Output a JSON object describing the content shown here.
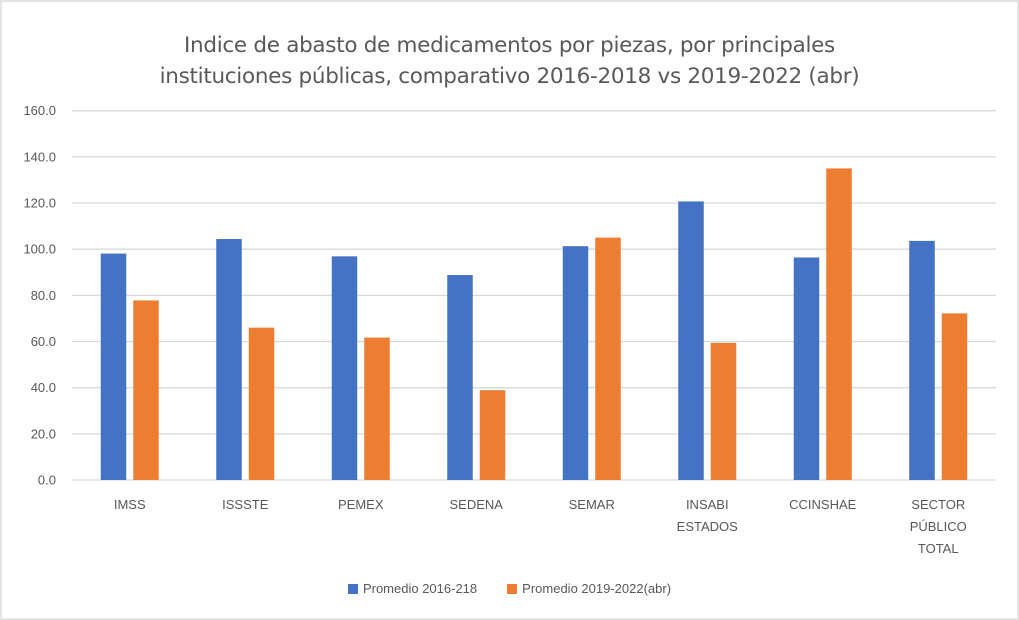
{
  "chart_data": {
    "type": "bar",
    "title_lines": [
      "Indice de abasto de medicamentos por piezas, por principales",
      "instituciones públicas, comparativo 2016-2018 vs 2019-2022 (abr)"
    ],
    "xlabel": "",
    "ylabel": "",
    "ylim": [
      0,
      160
    ],
    "yticks": [
      "0.0",
      "20.0",
      "40.0",
      "60.0",
      "80.0",
      "100.0",
      "120.0",
      "140.0",
      "160.0"
    ],
    "ytick_values": [
      0,
      20,
      40,
      60,
      80,
      100,
      120,
      140,
      160
    ],
    "grid": true,
    "legend_position": "bottom",
    "categories": [
      [
        "IMSS"
      ],
      [
        "ISSSTE"
      ],
      [
        "PEMEX"
      ],
      [
        "SEDENA"
      ],
      [
        "SEMAR"
      ],
      [
        "INSABI",
        "ESTADOS"
      ],
      [
        "CCINSHAE"
      ],
      [
        "SECTOR",
        "PÚBLICO",
        "TOTAL"
      ]
    ],
    "series": [
      {
        "name": "Promedio 2016-218",
        "color": "#4472C4",
        "values": [
          98.1,
          104.4,
          96.9,
          88.8,
          101.3,
          120.7,
          96.4,
          103.6
        ]
      },
      {
        "name": "Promedio 2019-2022(abr)",
        "color": "#ED7D31",
        "values": [
          77.8,
          66.0,
          61.7,
          38.9,
          105.0,
          59.4,
          135.0,
          72.2
        ]
      }
    ]
  }
}
